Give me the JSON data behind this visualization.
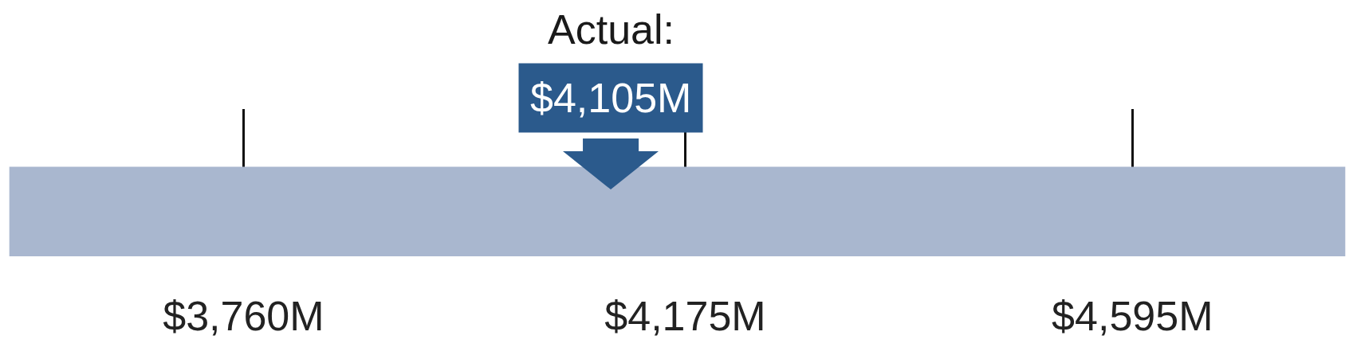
{
  "chart_data": {
    "type": "bar",
    "orientation": "horizontal",
    "categories": [
      null
    ],
    "base": [
      3540
    ],
    "values": [
      1255
    ],
    "color": "#a9b7cf",
    "xlim": [
      3535,
      4800
    ],
    "xticks": [
      {
        "value": 3760,
        "label": "$3,760M"
      },
      {
        "value": 4175,
        "label": "$4,175M"
      },
      {
        "value": 4595,
        "label": "$4,595M"
      }
    ],
    "grid": "x",
    "ref_lines": [
      {
        "axis": "x",
        "value": 4105,
        "label": "$4,105M",
        "color": "#2b5a8c"
      }
    ],
    "annotations": [
      "Actual:"
    ]
  }
}
